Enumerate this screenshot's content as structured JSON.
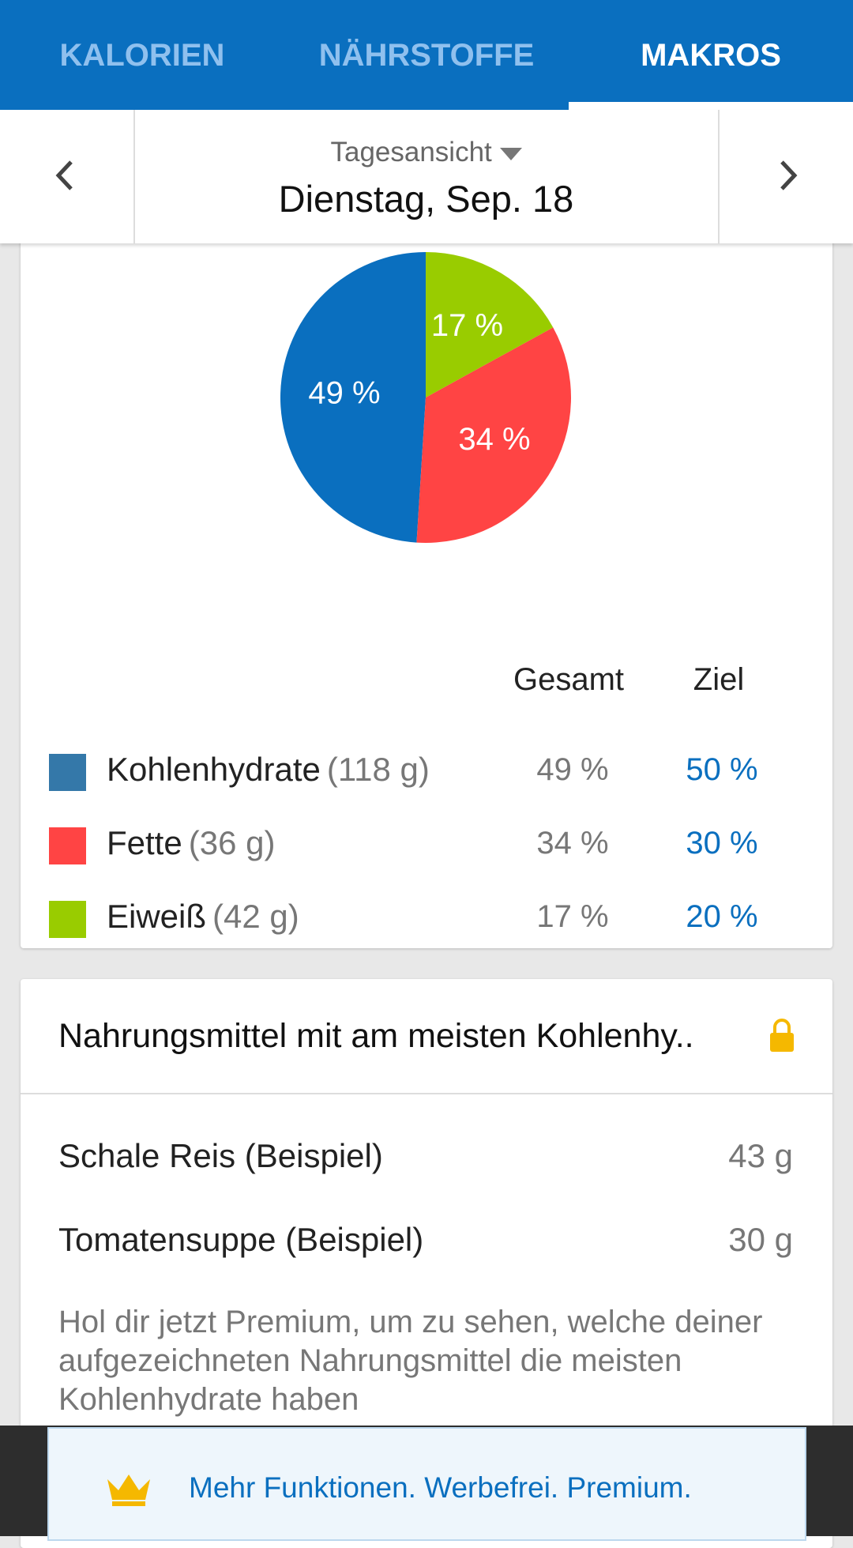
{
  "tabs": [
    "KALORIEN",
    "NÄHRSTOFFE",
    "MAKROS"
  ],
  "date_nav": {
    "view": "Tagesansicht",
    "date": "Dienstag, Sep. 18"
  },
  "chart_data": {
    "type": "pie",
    "categories": [
      "Kohlenhydrate",
      "Fette",
      "Eiweiß"
    ],
    "values": [
      49,
      34,
      17
    ],
    "value_labels": [
      "49 %",
      "34 %",
      "17 %"
    ],
    "colors": [
      "#0a6fbf",
      "#ff4444",
      "#99cc00"
    ]
  },
  "table": {
    "headers": [
      "Gesamt",
      "Ziel"
    ],
    "amounts": [
      "(118 g)",
      "(36 g)",
      "(42 g)"
    ],
    "targets": [
      "50 %",
      "30 %",
      "20 %"
    ],
    "legend_colors": [
      "#3478a9",
      "#ff4444",
      "#99cc00"
    ]
  },
  "foods": {
    "title": "Nahrungsmittel mit am meisten Kohlenhy..",
    "items": [
      {
        "name": "Schale Reis (Beispiel)",
        "amount": "43 g"
      },
      {
        "name": "Tomatensuppe (Beispiel)",
        "amount": "30 g"
      }
    ],
    "promo": "Hol dir jetzt Premium, um zu sehen, welche deiner aufgezeichneten Nahrungsmittel die meisten Kohlenhydrate haben"
  },
  "banner": "Mehr Funktionen. Werbefrei. Premium."
}
